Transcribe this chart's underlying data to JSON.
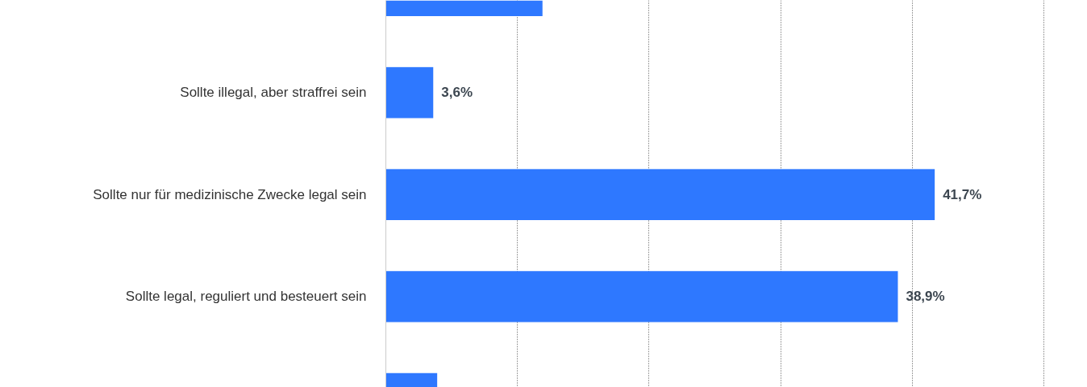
{
  "chart_data": {
    "type": "bar",
    "orientation": "horizontal",
    "categories": [
      null,
      "Sollte illegal, aber straffrei sein",
      "Sollte nur für medizinische Zwecke legal sein",
      "Sollte legal, reguliert und besteuert sein",
      null
    ],
    "values": [
      11.9,
      3.6,
      41.7,
      38.9,
      3.9
    ],
    "value_labels": [
      null,
      "3,6%",
      "41,7%",
      "38,9%",
      null
    ],
    "color": "#2e78ff",
    "xticks": [
      {
        "value": 0,
        "label": null
      },
      {
        "value": 10,
        "label": null
      },
      {
        "value": 20,
        "label": null
      },
      {
        "value": 30,
        "label": null
      },
      {
        "value": 40,
        "label": null
      },
      {
        "value": 50,
        "label": null
      }
    ],
    "grid": "x",
    "tick_labels": "y"
  }
}
